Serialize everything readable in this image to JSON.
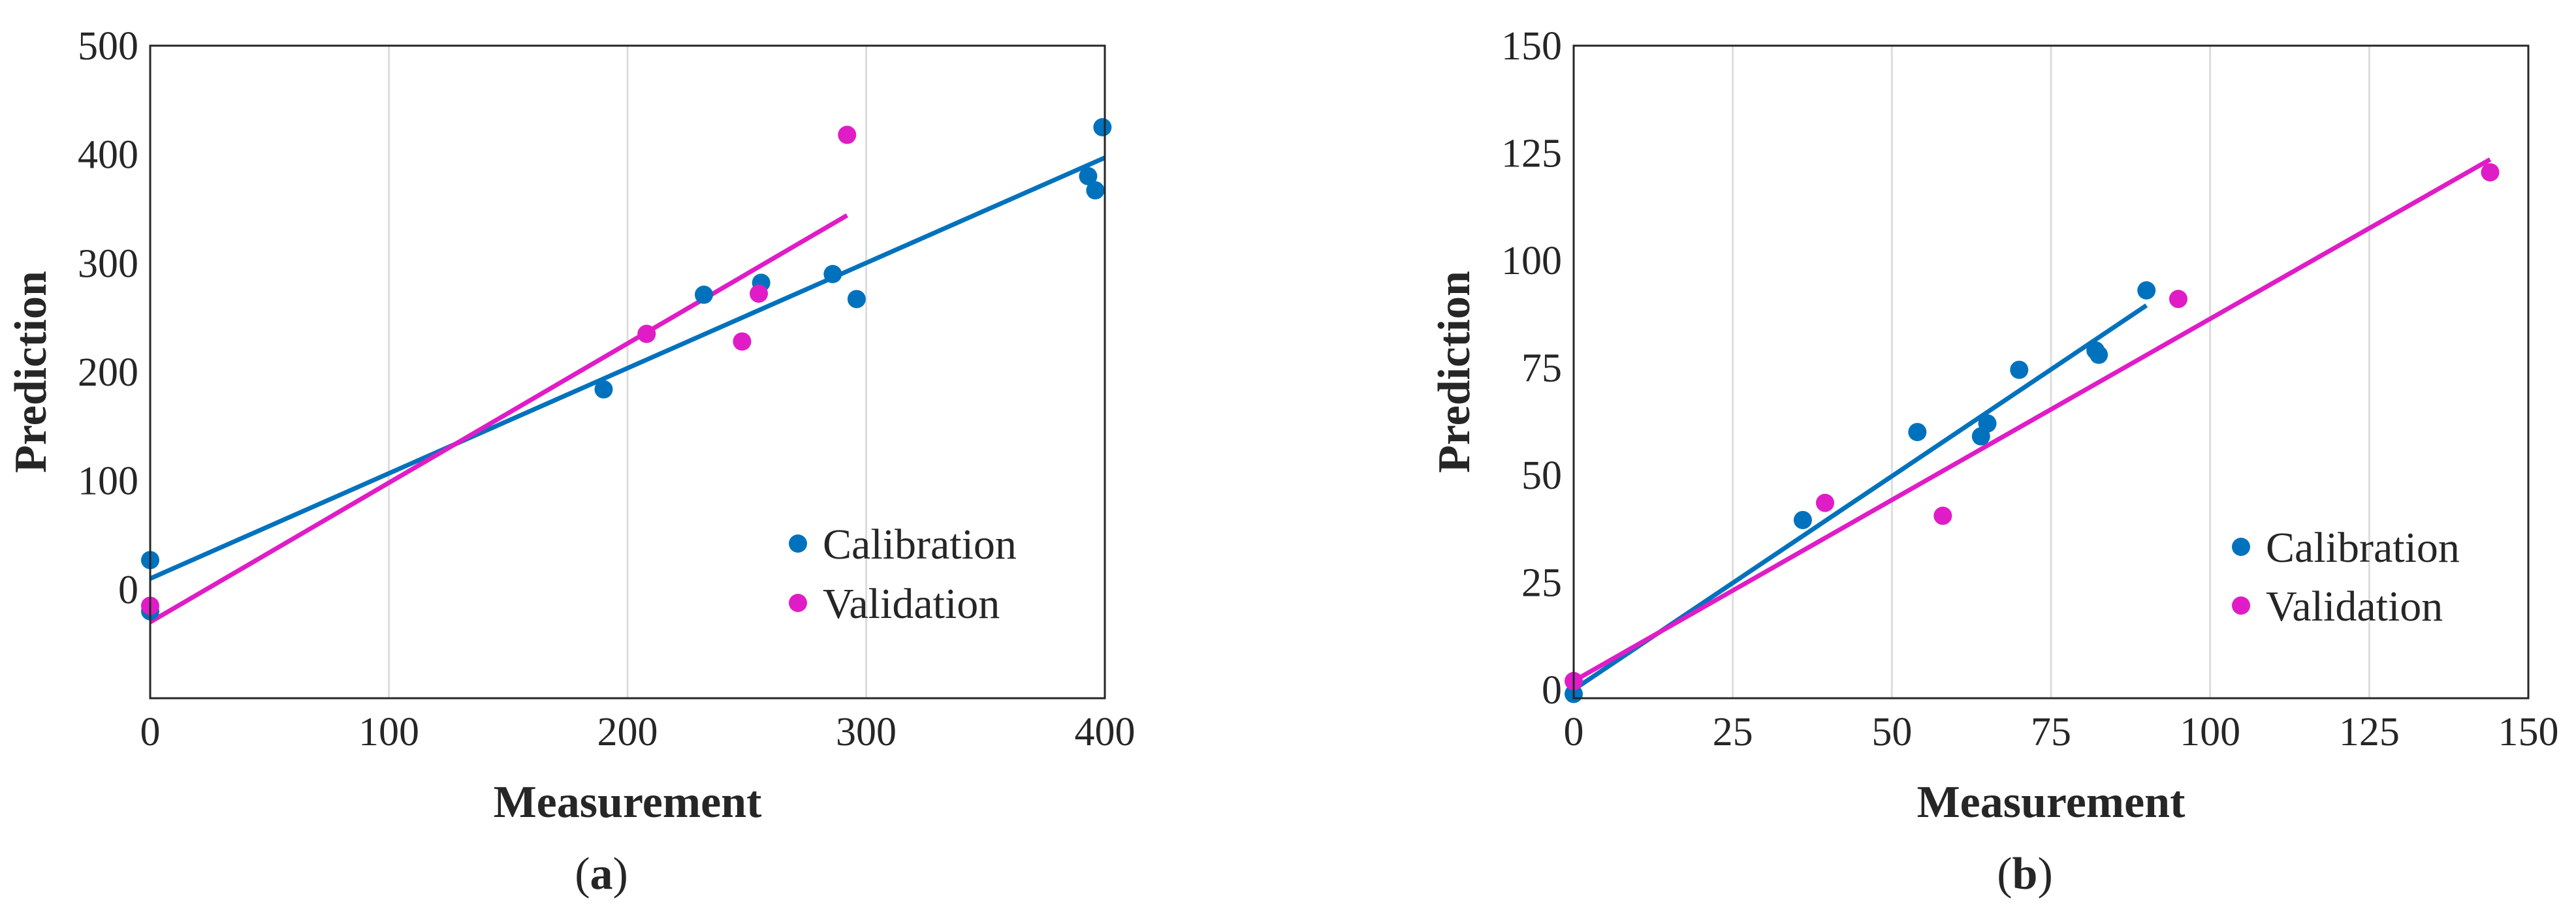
{
  "chart_data": [
    {
      "type": "scatter",
      "panel_label": "(a)",
      "panel_label_open": "(",
      "panel_label_letter": "a",
      "panel_label_close": ")",
      "xlabel": "Measurement",
      "ylabel": "Prediction",
      "xlim": [
        0,
        400
      ],
      "ylim": [
        -100,
        500
      ],
      "xticks": [
        0,
        100,
        200,
        300,
        400
      ],
      "yticks": [
        0,
        100,
        200,
        300,
        400,
        500
      ],
      "xtick_labels": [
        "0",
        "100",
        "200",
        "300",
        "400"
      ],
      "ytick_labels": [
        "0",
        "100",
        "200",
        "300",
        "400",
        "500"
      ],
      "grid": "vertical",
      "legend_position": "lower-right",
      "series": [
        {
          "name": "Calibration",
          "color": "#0072BD",
          "points": [
            [
              0,
              27
            ],
            [
              0,
              -20
            ],
            [
              190,
              184
            ],
            [
              232,
              271
            ],
            [
              256,
              282
            ],
            [
              286,
              290
            ],
            [
              296,
              267
            ],
            [
              393,
              380
            ],
            [
              396,
              367
            ],
            [
              399,
              425
            ]
          ],
          "fit": [
            [
              0,
              10
            ],
            [
              400,
              397
            ]
          ]
        },
        {
          "name": "Validation",
          "color": "#E01CC7",
          "points": [
            [
              0,
              -15
            ],
            [
              208,
              235
            ],
            [
              248,
              228
            ],
            [
              255,
              272
            ],
            [
              292,
              418
            ]
          ],
          "fit": [
            [
              0,
              -30
            ],
            [
              292,
              344
            ]
          ]
        }
      ]
    },
    {
      "type": "scatter",
      "panel_label": "(b)",
      "panel_label_open": "(",
      "panel_label_letter": "b",
      "panel_label_close": ")",
      "xlabel": "Measurement",
      "ylabel": "Prediction",
      "xlim": [
        0,
        150
      ],
      "ylim": [
        -2,
        150
      ],
      "xticks": [
        0,
        25,
        50,
        75,
        100,
        125,
        150
      ],
      "yticks": [
        0,
        25,
        50,
        75,
        100,
        125,
        150
      ],
      "xtick_labels": [
        "0",
        "25",
        "50",
        "75",
        "100",
        "125",
        "150"
      ],
      "ytick_labels": [
        "0",
        "25",
        "50",
        "75",
        "100",
        "125",
        "150"
      ],
      "grid": "vertical",
      "legend_position": "lower-right",
      "series": [
        {
          "name": "Calibration",
          "color": "#0072BD",
          "points": [
            [
              0,
              -1
            ],
            [
              36,
              39.5
            ],
            [
              54,
              60
            ],
            [
              64,
              59
            ],
            [
              65,
              62
            ],
            [
              70,
              74.5
            ],
            [
              82,
              79
            ],
            [
              82.5,
              78
            ],
            [
              90,
              93
            ]
          ],
          "fit": [
            [
              0,
              0
            ],
            [
              90,
              89.5
            ]
          ]
        },
        {
          "name": "Validation",
          "color": "#E01CC7",
          "points": [
            [
              0,
              2
            ],
            [
              39.5,
              43.5
            ],
            [
              58,
              40.5
            ],
            [
              95,
              91
            ],
            [
              144,
              120.5
            ]
          ],
          "fit": [
            [
              0,
              2
            ],
            [
              144,
              123.5
            ]
          ]
        }
      ]
    }
  ]
}
